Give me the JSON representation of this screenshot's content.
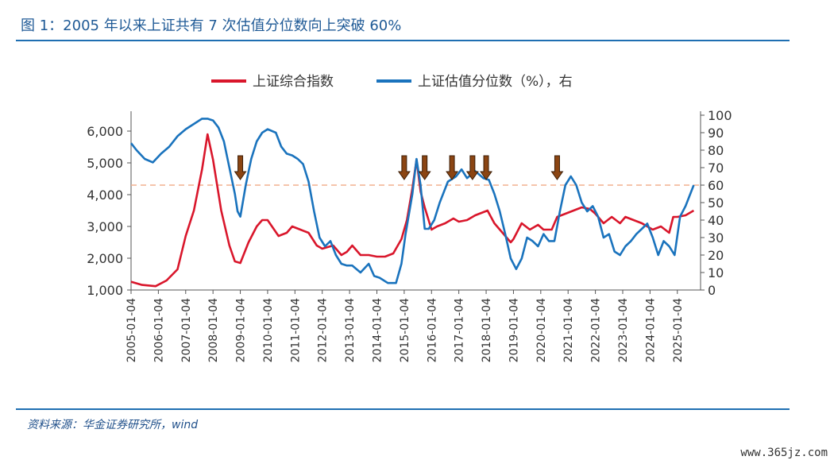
{
  "title": "图 1：2005 年以来上证共有 7 次估值分位数向上突破 60%",
  "source": "资料来源：华金证券研究所，wind",
  "watermark": "www.365jz.com",
  "colors": {
    "index": "#d9162b",
    "valuation": "#1a73bd",
    "threshold": "#f2b08f",
    "arrow": "#8b4513",
    "rule": "#1f6fb2"
  },
  "chart_data": {
    "type": "line",
    "title": "",
    "legend_position": "top",
    "grid": false,
    "x_ticks": [
      "2005-01-04",
      "2006-01-04",
      "2007-01-04",
      "2008-01-04",
      "2009-01-04",
      "2010-01-04",
      "2011-01-04",
      "2012-01-04",
      "2013-01-04",
      "2014-01-04",
      "2015-01-04",
      "2016-01-04",
      "2017-01-04",
      "2018-01-04",
      "2019-01-04",
      "2020-01-04",
      "2021-01-04",
      "2022-01-04",
      "2023-01-04",
      "2024-01-04",
      "2025-01-04"
    ],
    "y_left": {
      "min": 1000,
      "max": 6500,
      "ticks": [
        "1,000",
        "2,000",
        "3,000",
        "4,000",
        "5,000",
        "6,000"
      ]
    },
    "y_right": {
      "min": 0,
      "max": 100,
      "ticks": [
        "0",
        "10",
        "20",
        "30",
        "40",
        "50",
        "60",
        "70",
        "80",
        "90",
        "100"
      ]
    },
    "threshold": 60,
    "arrows_x": [
      2009.0,
      2015.0,
      2015.75,
      2016.75,
      2017.5,
      2018.0,
      2020.6
    ],
    "series": [
      {
        "name": "上证综合指数",
        "axis": "left",
        "x": [
          2005.0,
          2005.4,
          2005.9,
          2006.3,
          2006.7,
          2007.0,
          2007.3,
          2007.6,
          2007.8,
          2008.0,
          2008.3,
          2008.6,
          2008.8,
          2009.0,
          2009.3,
          2009.6,
          2009.8,
          2010.0,
          2010.4,
          2010.7,
          2010.9,
          2011.2,
          2011.5,
          2011.8,
          2012.0,
          2012.4,
          2012.7,
          2012.9,
          2013.1,
          2013.4,
          2013.7,
          2014.0,
          2014.3,
          2014.6,
          2014.9,
          2015.1,
          2015.3,
          2015.45,
          2015.6,
          2015.75,
          2016.0,
          2016.2,
          2016.5,
          2016.8,
          2017.0,
          2017.3,
          2017.6,
          2017.9,
          2018.05,
          2018.3,
          2018.6,
          2018.9,
          2019.0,
          2019.3,
          2019.6,
          2019.9,
          2020.1,
          2020.4,
          2020.6,
          2020.9,
          2021.2,
          2021.5,
          2021.8,
          2022.0,
          2022.3,
          2022.6,
          2022.9,
          2023.1,
          2023.4,
          2023.7,
          2023.9,
          2024.1,
          2024.4,
          2024.7,
          2024.85,
          2025.0,
          2025.3,
          2025.6
        ],
        "y": [
          1260,
          1160,
          1120,
          1300,
          1650,
          2700,
          3500,
          4800,
          5900,
          5100,
          3500,
          2400,
          1900,
          1850,
          2500,
          3000,
          3200,
          3200,
          2700,
          2800,
          3000,
          2900,
          2800,
          2400,
          2300,
          2400,
          2100,
          2200,
          2400,
          2100,
          2100,
          2050,
          2050,
          2150,
          2600,
          3200,
          4200,
          5100,
          4100,
          3600,
          2900,
          3000,
          3100,
          3250,
          3150,
          3200,
          3350,
          3450,
          3500,
          3100,
          2800,
          2500,
          2600,
          3100,
          2900,
          3050,
          2900,
          2900,
          3300,
          3400,
          3500,
          3600,
          3550,
          3400,
          3100,
          3300,
          3100,
          3300,
          3200,
          3100,
          3000,
          2900,
          3000,
          2800,
          3300,
          3300,
          3350,
          3500
        ]
      },
      {
        "name": "上证估值分位数（%），右",
        "axis": "right",
        "x": [
          2005.0,
          2005.2,
          2005.5,
          2005.8,
          2006.1,
          2006.4,
          2006.7,
          2007.0,
          2007.3,
          2007.6,
          2007.8,
          2008.0,
          2008.2,
          2008.4,
          2008.6,
          2008.8,
          2008.9,
          2009.0,
          2009.2,
          2009.4,
          2009.6,
          2009.8,
          2010.0,
          2010.3,
          2010.5,
          2010.7,
          2010.9,
          2011.1,
          2011.3,
          2011.5,
          2011.7,
          2011.9,
          2012.1,
          2012.3,
          2012.5,
          2012.7,
          2012.9,
          2013.1,
          2013.4,
          2013.7,
          2013.9,
          2014.1,
          2014.4,
          2014.7,
          2014.9,
          2015.05,
          2015.3,
          2015.45,
          2015.6,
          2015.75,
          2015.9,
          2016.1,
          2016.3,
          2016.6,
          2016.9,
          2017.1,
          2017.3,
          2017.6,
          2017.9,
          2018.1,
          2018.3,
          2018.5,
          2018.7,
          2018.9,
          2019.1,
          2019.3,
          2019.5,
          2019.7,
          2019.9,
          2020.1,
          2020.3,
          2020.5,
          2020.7,
          2020.9,
          2021.1,
          2021.3,
          2021.5,
          2021.7,
          2021.9,
          2022.1,
          2022.3,
          2022.5,
          2022.7,
          2022.9,
          2023.1,
          2023.3,
          2023.5,
          2023.7,
          2023.9,
          2024.1,
          2024.3,
          2024.5,
          2024.7,
          2024.9,
          2025.1,
          2025.3,
          2025.6
        ],
        "y": [
          84,
          80,
          75,
          73,
          78,
          82,
          88,
          92,
          95,
          98,
          98,
          97,
          93,
          85,
          70,
          55,
          45,
          42,
          60,
          75,
          85,
          90,
          92,
          90,
          82,
          78,
          77,
          75,
          72,
          62,
          45,
          30,
          25,
          28,
          20,
          15,
          14,
          14,
          10,
          15,
          8,
          7,
          4,
          4,
          15,
          32,
          55,
          75,
          60,
          35,
          35,
          40,
          50,
          62,
          65,
          69,
          64,
          68,
          64,
          63,
          55,
          45,
          32,
          18,
          12,
          18,
          30,
          28,
          25,
          32,
          28,
          28,
          45,
          60,
          65,
          60,
          50,
          45,
          48,
          42,
          30,
          32,
          22,
          20,
          25,
          28,
          32,
          35,
          38,
          30,
          20,
          28,
          25,
          20,
          42,
          48,
          60
        ]
      }
    ]
  }
}
